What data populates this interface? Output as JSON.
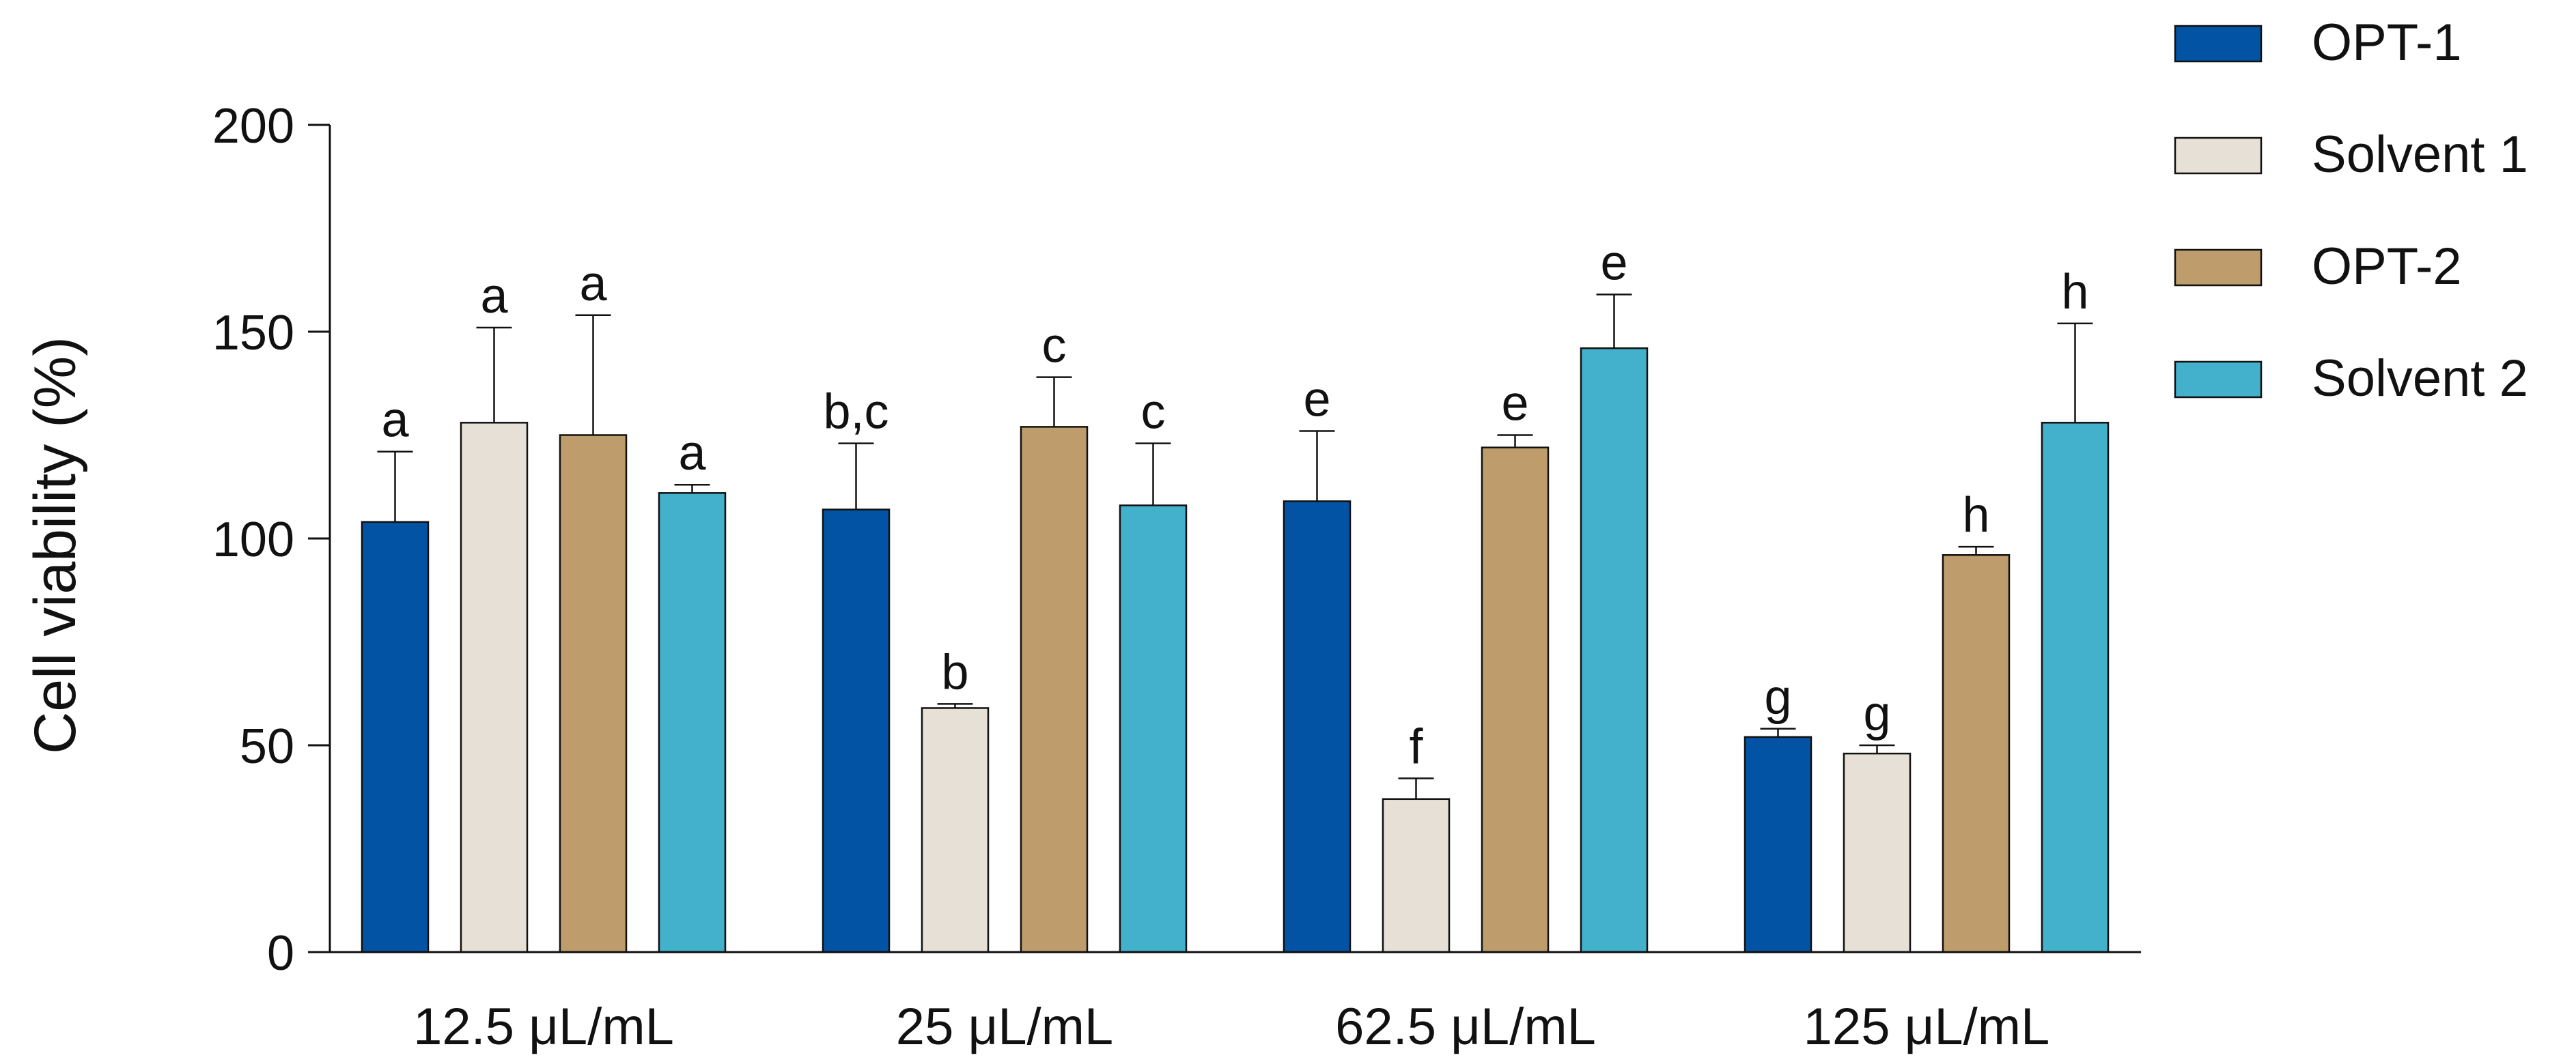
{
  "chart_data": {
    "type": "bar",
    "title": "",
    "xlabel": "",
    "ylabel": "Cell viability (%)",
    "ylim": [
      0,
      200
    ],
    "yticks": [
      "0",
      "50",
      "100",
      "150",
      "200"
    ],
    "grid": false,
    "legend_position": "top-right",
    "categories": [
      "12.5 μL/mL",
      "25 μL/mL",
      "62.5 μL/mL",
      "125 μL/mL"
    ],
    "series": [
      {
        "name": "OPT-1",
        "color": "#0253A4",
        "values": [
          104,
          107,
          109,
          52
        ],
        "errors": [
          17,
          16,
          17,
          2
        ],
        "letters": [
          "a",
          "b,c",
          "e",
          "g"
        ]
      },
      {
        "name": "Solvent 1",
        "color": "#E6E0D6",
        "values": [
          128,
          59,
          37,
          48
        ],
        "errors": [
          23,
          1,
          5,
          2
        ],
        "letters": [
          "a",
          "b",
          "f",
          "g"
        ]
      },
      {
        "name": "OPT-2",
        "color": "#BF9C6C",
        "values": [
          125,
          127,
          122,
          96
        ],
        "errors": [
          29,
          12,
          3,
          2
        ],
        "letters": [
          "a",
          "c",
          "e",
          "h"
        ]
      },
      {
        "name": "Solvent 2",
        "color": "#43B0CC",
        "values": [
          111,
          108,
          146,
          128
        ],
        "errors": [
          2,
          15,
          13,
          24
        ],
        "letters": [
          "a",
          "c",
          "e",
          "h"
        ]
      }
    ]
  }
}
